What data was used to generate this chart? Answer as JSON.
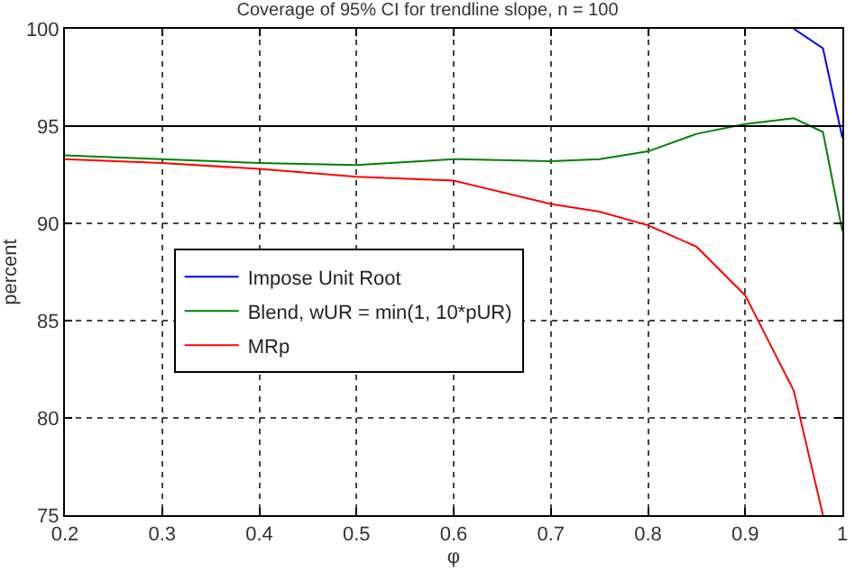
{
  "chart_data": {
    "type": "line",
    "title": "Coverage of 95% CI for trendline slope, n = 100",
    "xlabel": "φ",
    "ylabel": "percent",
    "x": [
      0.2,
      0.3,
      0.4,
      0.5,
      0.6,
      0.7,
      0.75,
      0.8,
      0.85,
      0.9,
      0.95,
      0.98,
      1.0
    ],
    "series": [
      {
        "name": "Impose Unit Root",
        "color": "#0000ff",
        "values": [
          null,
          null,
          null,
          null,
          null,
          null,
          null,
          null,
          null,
          null,
          100,
          99.0,
          94.4
        ]
      },
      {
        "name": "Blend, wUR = min(1, 10*pUR)",
        "color": "#008000",
        "values": [
          93.5,
          93.3,
          93.1,
          93.0,
          93.3,
          93.2,
          93.3,
          93.7,
          94.6,
          95.1,
          95.4,
          94.7,
          89.6
        ]
      },
      {
        "name": "MRp",
        "color": "#ff0000",
        "values": [
          93.3,
          93.1,
          92.8,
          92.4,
          92.2,
          91.0,
          90.6,
          89.9,
          88.8,
          86.3,
          81.4,
          75.0,
          null
        ]
      }
    ],
    "xlim": [
      0.2,
      1.0
    ],
    "xticks": [
      0.2,
      0.3,
      0.4,
      0.5,
      0.6,
      0.7,
      0.8,
      0.9,
      1
    ],
    "ylim": [
      75,
      100
    ],
    "yticks": [
      75,
      80,
      85,
      90,
      95,
      100
    ],
    "ref_lines": [
      {
        "axis": "y",
        "value": 95,
        "color": "#000000",
        "line_style": "solid"
      }
    ],
    "grid": true,
    "legend": "left",
    "marker": "none",
    "line_style": "solid"
  }
}
